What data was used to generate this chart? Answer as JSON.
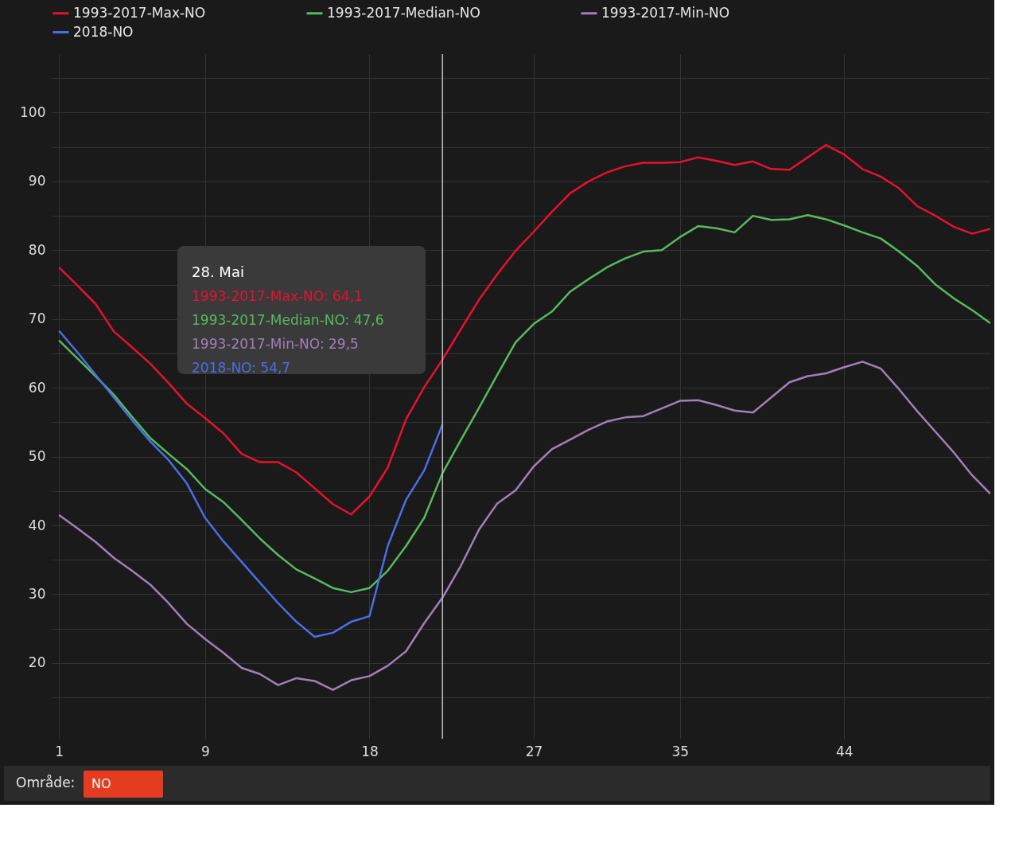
{
  "chart_data": {
    "type": "line",
    "x": [
      1,
      2,
      3,
      4,
      5,
      6,
      7,
      8,
      9,
      10,
      11,
      12,
      13,
      14,
      15,
      16,
      17,
      18,
      19,
      20,
      21,
      22,
      23,
      24,
      25,
      26,
      27,
      28,
      29,
      30,
      31,
      32,
      33,
      34,
      35,
      36,
      37,
      38,
      39,
      40,
      41,
      42,
      43,
      44,
      45,
      46,
      47,
      48,
      49,
      50,
      51,
      52
    ],
    "series": [
      {
        "name": "1993-2017-Max-NO",
        "color": "#e8112d",
        "values": [
          77.5,
          74.9,
          72.2,
          68.2,
          65.9,
          63.5,
          60.7,
          57.7,
          55.6,
          53.4,
          50.4,
          49.2,
          49.2,
          47.7,
          45.4,
          43.1,
          41.6,
          44.2,
          48.4,
          55.4,
          60.1,
          64.1,
          68.5,
          72.8,
          76.5,
          79.9,
          82.7,
          85.6,
          88.3,
          90.0,
          91.3,
          92.2,
          92.7,
          92.7,
          92.8,
          93.5,
          93.0,
          92.4,
          92.9,
          91.8,
          91.7,
          93.5,
          95.3,
          93.9,
          91.8,
          90.7,
          89.0,
          86.4,
          85.0,
          83.4,
          82.4,
          83.1
        ]
      },
      {
        "name": "1993-2017-Median-NO",
        "color": "#55bb5c",
        "values": [
          66.9,
          64.3,
          61.7,
          59.0,
          55.8,
          52.7,
          50.4,
          48.2,
          45.3,
          43.4,
          40.8,
          38.1,
          35.7,
          33.6,
          32.3,
          30.9,
          30.3,
          30.9,
          33.4,
          37.0,
          41.1,
          47.6,
          52.4,
          57.1,
          61.9,
          66.6,
          69.3,
          71.1,
          74.0,
          75.8,
          77.5,
          78.8,
          79.8,
          80.0,
          81.9,
          83.5,
          83.2,
          82.6,
          85.0,
          84.4,
          84.5,
          85.1,
          84.5,
          83.6,
          82.6,
          81.7,
          79.8,
          77.7,
          75.0,
          73.0,
          71.3,
          69.4
        ]
      },
      {
        "name": "1993-2017-Min-NO",
        "color": "#a57db9",
        "values": [
          41.5,
          39.6,
          37.6,
          35.3,
          33.4,
          31.4,
          28.7,
          25.7,
          23.5,
          21.5,
          19.3,
          18.4,
          16.8,
          17.8,
          17.4,
          16.1,
          17.5,
          18.1,
          19.6,
          21.7,
          25.8,
          29.5,
          34.1,
          39.4,
          43.2,
          45.1,
          48.6,
          51.1,
          52.5,
          53.9,
          55.1,
          55.7,
          55.9,
          57.0,
          58.1,
          58.2,
          57.5,
          56.7,
          56.4,
          58.6,
          60.8,
          61.7,
          62.1,
          63.0,
          63.8,
          62.8,
          59.8,
          56.6,
          53.6,
          50.6,
          47.3,
          44.6
        ]
      },
      {
        "name": "2018-NO",
        "color": "#4a6ee6",
        "values": [
          68.3,
          65.2,
          61.9,
          58.6,
          55.3,
          52.2,
          49.5,
          46.1,
          41.1,
          37.7,
          34.7,
          31.7,
          28.7,
          26.0,
          23.8,
          24.4,
          26.0,
          26.8,
          37.0,
          43.7,
          48.0,
          54.7,
          null,
          null,
          null,
          null,
          null,
          null,
          null,
          null,
          null,
          null,
          null,
          null,
          null,
          null,
          null,
          null,
          null,
          null,
          null,
          null,
          null,
          null,
          null,
          null,
          null,
          null,
          null,
          null,
          null,
          null
        ]
      }
    ],
    "xlim": [
      0.6,
      52
    ],
    "xticks": [
      1,
      9,
      18,
      27,
      35,
      44
    ],
    "ylim": [
      9,
      108.5
    ],
    "yticks": [
      {
        "value": 15,
        "label": null
      },
      20,
      {
        "value": 25,
        "label": null
      },
      30,
      {
        "value": 35,
        "label": null
      },
      40,
      {
        "value": 45,
        "label": null
      },
      50,
      {
        "value": 55,
        "label": null
      },
      60,
      {
        "value": 65,
        "label": null
      },
      70,
      {
        "value": 75,
        "label": null
      },
      80,
      {
        "value": 85,
        "label": null
      },
      90,
      {
        "value": 95,
        "label": null
      },
      100,
      {
        "value": 105,
        "label": null
      }
    ],
    "grid": true,
    "legend": "top",
    "line_style": "solid",
    "marker": "none",
    "ref_lines": [
      {
        "axis": "x",
        "value": 22,
        "color": "#bbbbbb"
      }
    ],
    "annotations": [
      "28. Mai",
      "1993-2017-Max-NO: 64,1",
      "1993-2017-Median-NO: 47,6",
      "1993-2017-Min-NO: 29,5",
      "2018-NO: 54,7",
      "Område:",
      "NO"
    ]
  }
}
